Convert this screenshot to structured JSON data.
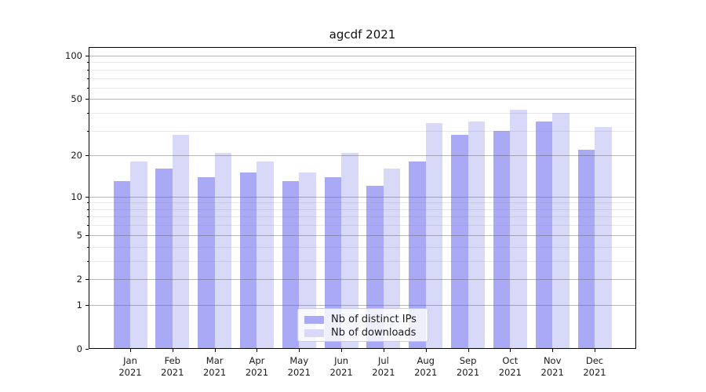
{
  "chart_data": {
    "type": "bar",
    "title": "agcdf 2021",
    "xlabel": "",
    "ylabel": "",
    "categories": [
      "Jan 2021",
      "Feb 2021",
      "Mar 2021",
      "Apr 2021",
      "May 2021",
      "Jun 2021",
      "Jul 2021",
      "Aug 2021",
      "Sep 2021",
      "Oct 2021",
      "Nov 2021",
      "Dec 2021"
    ],
    "series": [
      {
        "name": "Nb of distinct IPs",
        "color": "#a9a9f6",
        "values": [
          13,
          16,
          14,
          15,
          13,
          14,
          12,
          18,
          28,
          30,
          35,
          22
        ]
      },
      {
        "name": "Nb of downloads",
        "color": "#d8d8f8",
        "values": [
          18,
          28,
          21,
          18,
          15,
          21,
          16,
          34,
          35,
          42,
          40,
          32
        ]
      }
    ],
    "yscale": "log1p",
    "ylim": [
      0,
      115
    ],
    "y_major_ticks": [
      0,
      1,
      2,
      5,
      10,
      20,
      50,
      100
    ],
    "y_minor_ticks": [
      3,
      4,
      6,
      7,
      8,
      9,
      30,
      40,
      60,
      70,
      80,
      90
    ],
    "grid": true,
    "legend_position": "lower center",
    "colors": {
      "major_grid": "#b0b0b0",
      "minor_grid": "#e8e8e8",
      "spine": "#000000",
      "text": "#1a1a1a",
      "background": "#ffffff"
    }
  }
}
